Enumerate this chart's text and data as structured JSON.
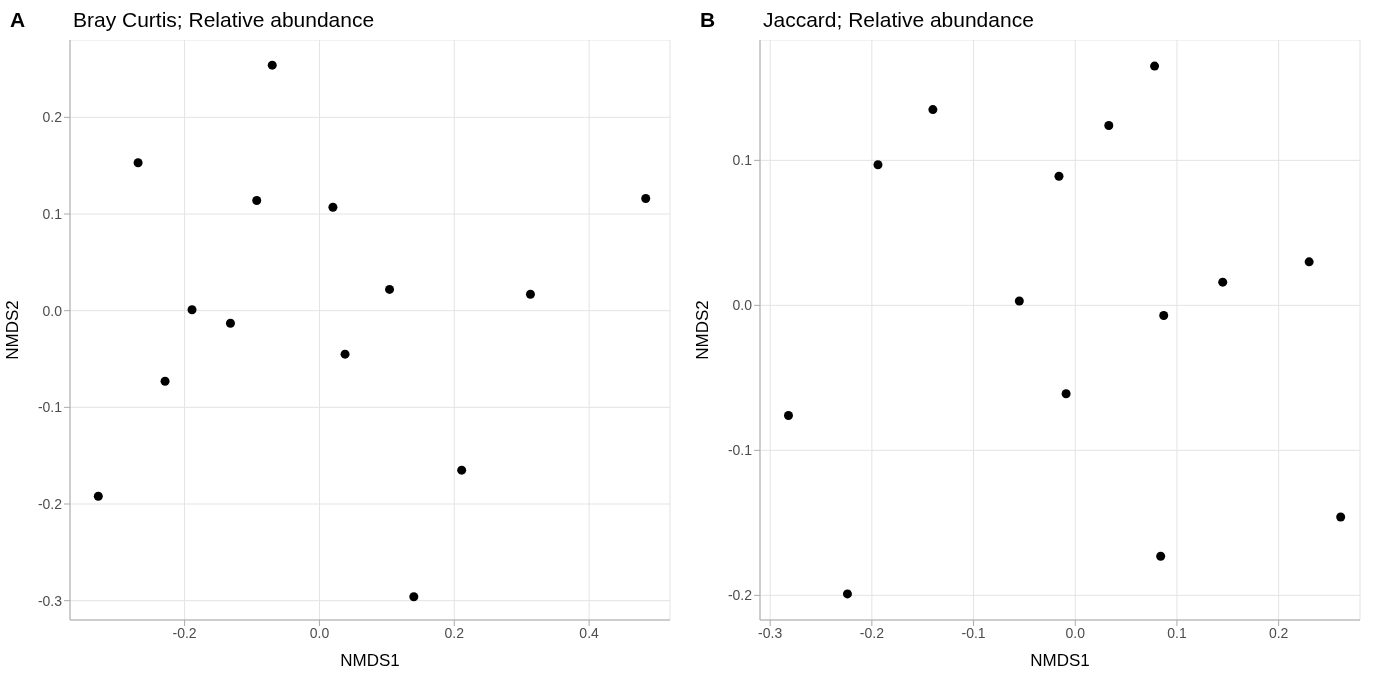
{
  "chart_data": [
    {
      "type": "scatter",
      "title": "Bray Curtis; Relative abundance",
      "annotations": [
        "A"
      ],
      "xlabel": "NMDS1",
      "ylabel": "NMDS2",
      "x": [
        -0.07,
        -0.269,
        -0.093,
        0.02,
        0.484,
        0.104,
        0.313,
        -0.189,
        -0.132,
        0.038,
        -0.229,
        -0.328,
        0.211,
        0.14
      ],
      "values": [
        0.254,
        0.153,
        0.114,
        0.107,
        0.116,
        0.022,
        0.017,
        0.001,
        -0.013,
        -0.045,
        -0.073,
        -0.192,
        -0.165,
        -0.296
      ],
      "color": "#000000",
      "marker": "circle",
      "xlim": [
        -0.37,
        0.52
      ],
      "ylim": [
        -0.32,
        0.28
      ],
      "xticks": [
        -0.2,
        {
          "value": 0,
          "label": "0.0"
        },
        0.2,
        0.4
      ],
      "yticks": [
        -0.3,
        -0.2,
        -0.1,
        {
          "value": 0,
          "label": "0.0"
        },
        0.1,
        0.2
      ],
      "grid": true,
      "legend": false
    },
    {
      "type": "scatter",
      "title": "Jaccard; Relative abundance",
      "annotations": [
        "B"
      ],
      "xlabel": "NMDS1",
      "ylabel": "NMDS2",
      "x": [
        0.078,
        -0.14,
        0.033,
        -0.194,
        -0.016,
        0.23,
        0.145,
        -0.055,
        0.087,
        -0.009,
        -0.282,
        0.261,
        0.084,
        -0.224
      ],
      "values": [
        0.165,
        0.135,
        0.124,
        0.097,
        0.089,
        0.03,
        0.016,
        0.003,
        -0.007,
        -0.061,
        -0.076,
        -0.146,
        -0.173,
        -0.199
      ],
      "color": "#000000",
      "marker": "circle",
      "xlim": [
        -0.31,
        0.28
      ],
      "ylim": [
        -0.217,
        0.183
      ],
      "xticks": [
        -0.3,
        -0.2,
        -0.1,
        {
          "value": 0,
          "label": "0.0"
        },
        0.1,
        0.2
      ],
      "yticks": [
        -0.2,
        -0.1,
        {
          "value": 0,
          "label": "0.0"
        },
        0.1
      ],
      "grid": true,
      "legend": false
    }
  ]
}
